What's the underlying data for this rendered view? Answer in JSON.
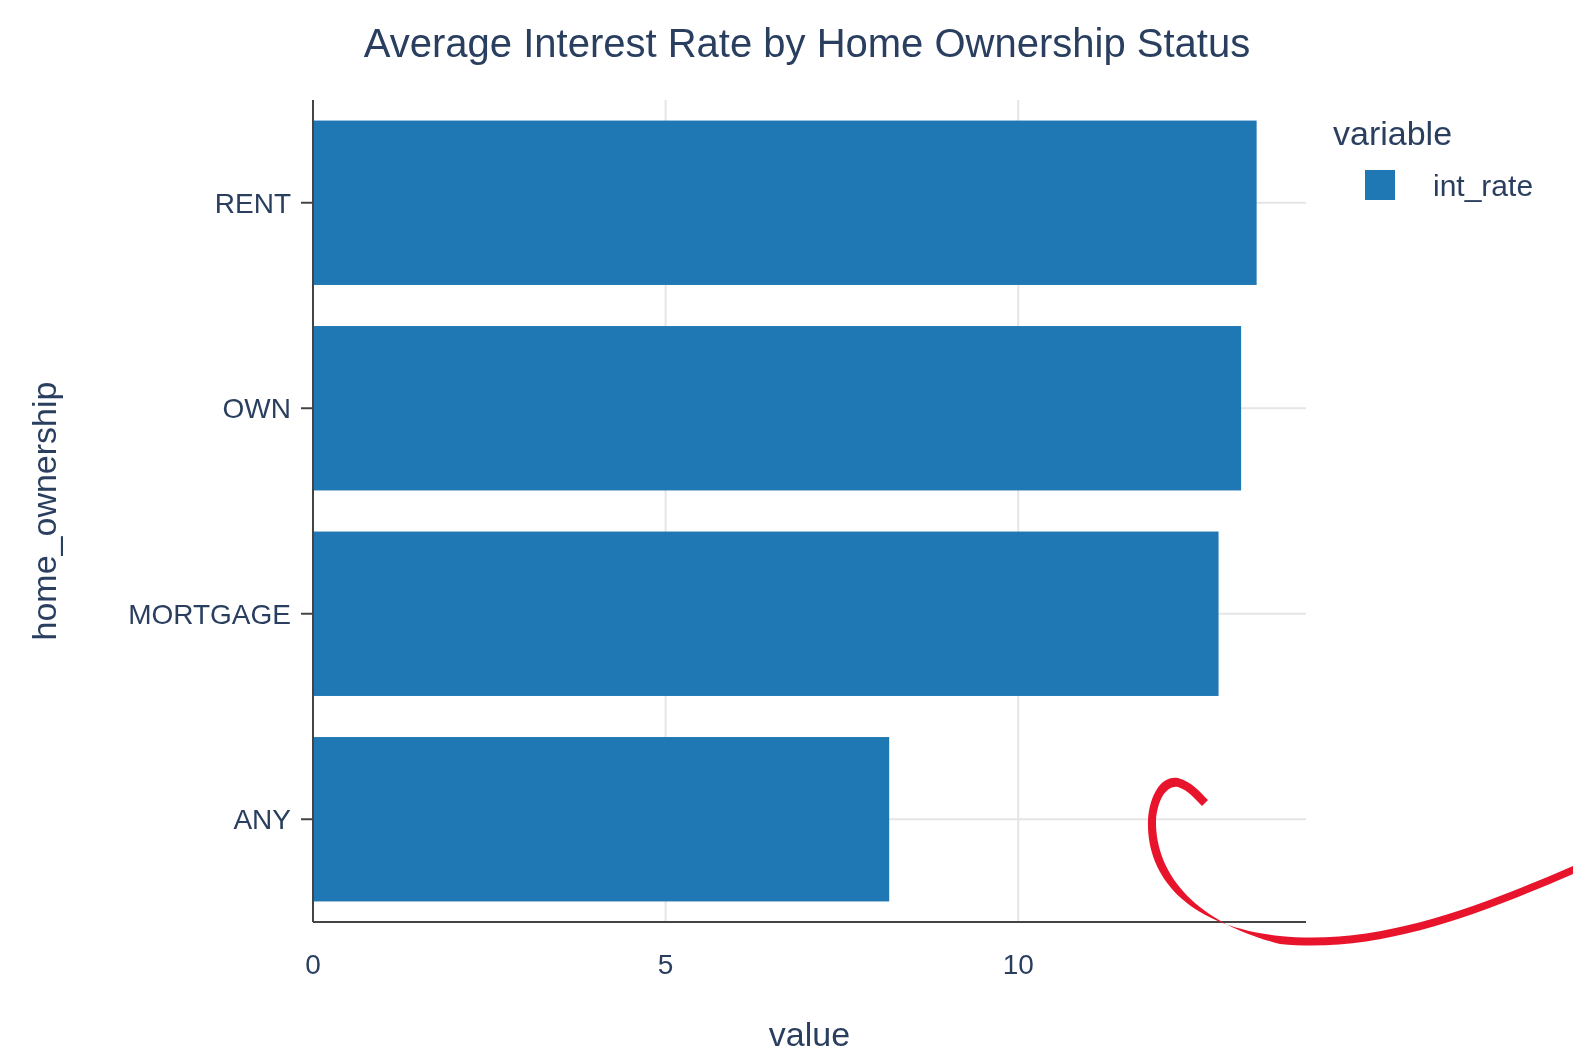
{
  "chart_data": {
    "type": "bar",
    "orientation": "horizontal",
    "title": "Average Interest Rate by Home Ownership Status",
    "xlabel": "value",
    "ylabel": "home_ownership",
    "legend_title": "variable",
    "categories": [
      "RENT",
      "OWN",
      "MORTGAGE",
      "ANY"
    ],
    "series": [
      {
        "name": "int_rate",
        "color": "#1f77b4",
        "values": [
          13.38,
          13.16,
          12.84,
          8.17
        ]
      }
    ],
    "xlim": [
      0,
      14.08
    ],
    "xticks": [
      0,
      5,
      10
    ],
    "grid": true,
    "legend": "top right"
  }
}
